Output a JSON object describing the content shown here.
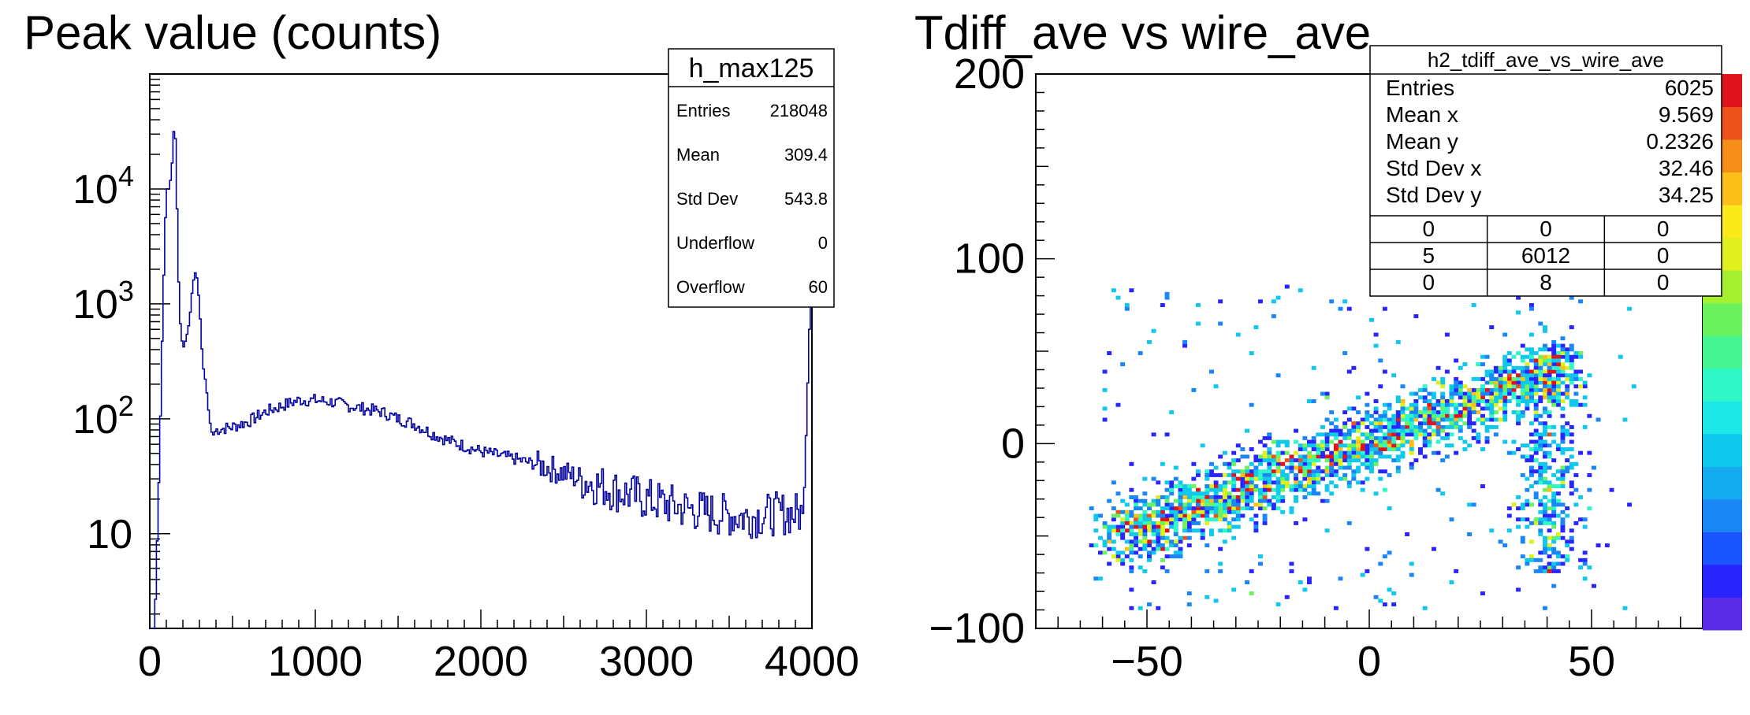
{
  "chart_data": [
    {
      "type": "histogram",
      "title": "Peak value (counts)",
      "xlabel": "",
      "ylabel": "",
      "xlim": [
        0,
        4000
      ],
      "ylim": [
        1.5,
        100000
      ],
      "yscale": "log",
      "grid": false,
      "line_color": "#000099",
      "x_ticks": [
        "0",
        "1000",
        "2000",
        "3000",
        "4000"
      ],
      "y_ticks": [
        {
          "value": 10,
          "base": "10",
          "exp": ""
        },
        {
          "value": 100,
          "base": "10",
          "exp": "2"
        },
        {
          "value": 1000,
          "base": "10",
          "exp": "3"
        },
        {
          "value": 10000,
          "base": "10",
          "exp": "4"
        }
      ],
      "curve": {
        "x": [
          0,
          30,
          60,
          80,
          100,
          120,
          140,
          150,
          160,
          170,
          180,
          200,
          220,
          240,
          260,
          280,
          300,
          320,
          340,
          360,
          380,
          400,
          500,
          600,
          700,
          800,
          900,
          1000,
          1100,
          1200,
          1300,
          1400,
          1500,
          1600,
          1700,
          1800,
          1900,
          2000,
          2200,
          2400,
          2600,
          2800,
          3000,
          3200,
          3400,
          3600,
          3800,
          3950,
          3970,
          3985,
          4000
        ],
        "y": [
          1.5,
          1.5,
          50,
          1000,
          10000,
          10000,
          20000,
          50000,
          15000,
          3000,
          800,
          400,
          500,
          700,
          1500,
          2000,
          1000,
          300,
          200,
          100,
          70,
          80,
          85,
          95,
          115,
          130,
          145,
          145,
          140,
          130,
          122,
          115,
          100,
          90,
          75,
          65,
          58,
          52,
          45,
          38,
          30,
          24,
          20,
          17,
          15,
          14,
          15,
          15,
          120,
          600,
          1200
        ]
      },
      "stats_box": {
        "title": "h_max125",
        "rows": [
          {
            "label": "Entries",
            "value": "218048"
          },
          {
            "label": "Mean",
            "value": "309.4"
          },
          {
            "label": "Std Dev",
            "value": "543.8"
          },
          {
            "label": "Underflow",
            "value": "0"
          },
          {
            "label": "Overflow",
            "value": "60"
          }
        ]
      }
    },
    {
      "type": "heatmap",
      "title": "Tdiff_ave vs wire_ave",
      "xlabel": "",
      "ylabel": "",
      "xlim": [
        -75,
        75
      ],
      "ylim": [
        -100,
        200
      ],
      "grid": false,
      "x_ticks": [
        "−50",
        "0",
        "50"
      ],
      "y_ticks": [
        "−100",
        "0",
        "100",
        "200"
      ],
      "colormap": [
        "#5b2ce8",
        "#2a25ff",
        "#1a55ff",
        "#1b86f5",
        "#14aaf0",
        "#10c8ec",
        "#1ce8e8",
        "#2ff7c8",
        "#46f592",
        "#6cf25f",
        "#a7f02f",
        "#dff01e",
        "#fbe91a",
        "#fcbf1a",
        "#f48e19",
        "#ec5219",
        "#e0141c"
      ],
      "clusters": [
        {
          "x_from": -58,
          "y_from": -52,
          "x_to": 45,
          "y_to": 42,
          "spread": 9,
          "weight": 0.78
        },
        {
          "x_center": 40,
          "x_spread": 4,
          "y_from": -70,
          "y_to": 50,
          "weight": 0.15
        },
        {
          "x_from": -60,
          "x_to": 60,
          "y_from": -90,
          "y_to": 85,
          "weight": 0.07
        }
      ],
      "stats_box": {
        "title": "h2_tdiff_ave_vs_wire_ave",
        "rows": [
          {
            "label": "Entries",
            "value": "6025"
          },
          {
            "label": "Mean x",
            "value": "9.569"
          },
          {
            "label": "Mean y",
            "value": "0.2326"
          },
          {
            "label": "Std Dev x",
            "value": "32.46"
          },
          {
            "label": "Std Dev y",
            "value": "34.25"
          }
        ],
        "grid": [
          [
            "0",
            "0",
            "0"
          ],
          [
            "5",
            "6012",
            "0"
          ],
          [
            "0",
            "8",
            "0"
          ]
        ]
      }
    }
  ]
}
